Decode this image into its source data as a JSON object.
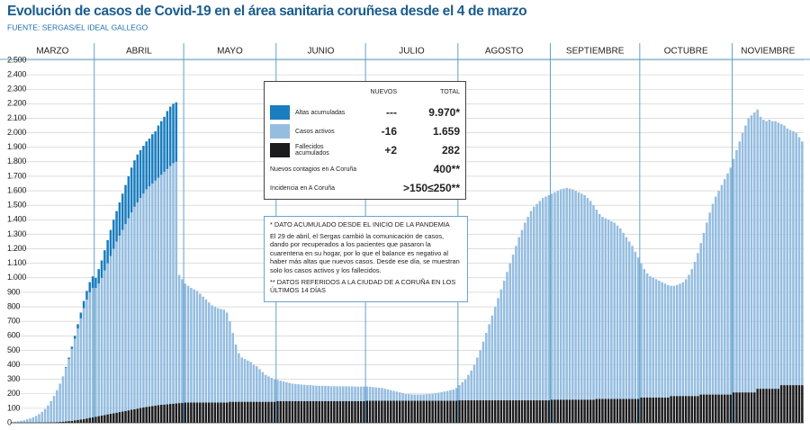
{
  "chart_data": {
    "type": "stacked_bar",
    "title": "Evolución de casos de Covid-19 en el área sanitaria coruñesa desde el 4 de marzo",
    "source": "FUENTE: SERGAS/EL IDEAL GALLEGO",
    "categories": [
      "MARZO",
      null,
      null,
      null,
      null,
      null,
      null,
      null,
      null,
      null,
      null,
      null,
      null,
      null,
      null,
      null,
      null,
      null,
      null,
      null,
      null,
      null,
      null,
      null,
      null,
      null,
      null,
      null,
      "ABRIL",
      null,
      null,
      null,
      null,
      null,
      null,
      null,
      null,
      null,
      null,
      null,
      null,
      null,
      null,
      null,
      null,
      null,
      null,
      null,
      null,
      null,
      null,
      null,
      null,
      null,
      null,
      null,
      null,
      null,
      "MAYO",
      null,
      null,
      null,
      null,
      null,
      null,
      null,
      null,
      null,
      null,
      null,
      null,
      null,
      null,
      null,
      null,
      null,
      null,
      null,
      null,
      null,
      null,
      null,
      null,
      null,
      null,
      null,
      null,
      null,
      null,
      "JUNIO",
      null,
      null,
      null,
      null,
      null,
      null,
      null,
      null,
      null,
      null,
      null,
      null,
      null,
      null,
      null,
      null,
      null,
      null,
      null,
      null,
      null,
      null,
      null,
      null,
      null,
      null,
      null,
      null,
      null,
      "JULIO",
      null,
      null,
      null,
      null,
      null,
      null,
      null,
      null,
      null,
      null,
      null,
      null,
      null,
      null,
      null,
      null,
      null,
      null,
      null,
      null,
      null,
      null,
      null,
      null,
      null,
      null,
      null,
      null,
      null,
      null,
      "AGOSTO",
      null,
      null,
      null,
      null,
      null,
      null,
      null,
      null,
      null,
      null,
      null,
      null,
      null,
      null,
      null,
      null,
      null,
      null,
      null,
      null,
      null,
      null,
      null,
      null,
      null,
      null,
      null,
      null,
      null,
      null,
      "SEPTIEMBRE",
      null,
      null,
      null,
      null,
      null,
      null,
      null,
      null,
      null,
      null,
      null,
      null,
      null,
      null,
      null,
      null,
      null,
      null,
      null,
      null,
      null,
      null,
      null,
      null,
      null,
      null,
      null,
      null,
      null,
      "OCTUBRE",
      null,
      null,
      null,
      null,
      null,
      null,
      null,
      null,
      null,
      null,
      null,
      null,
      null,
      null,
      null,
      null,
      null,
      null,
      null,
      null,
      null,
      null,
      null,
      null,
      null,
      null,
      null,
      null,
      null,
      null,
      "NOVIEMBRE",
      null,
      null,
      null,
      null,
      null,
      null,
      null,
      null,
      null,
      null,
      null,
      null,
      null,
      null,
      null,
      null,
      null,
      null,
      null,
      null,
      null,
      null,
      null
    ],
    "series": [
      {
        "name": "Altas acumuladas",
        "color": "#1a7dbf",
        "values": [
          0,
          0,
          0,
          0,
          0,
          0,
          0,
          0,
          0,
          0,
          0,
          0,
          0,
          0,
          0,
          0,
          0,
          0,
          5,
          10,
          15,
          20,
          30,
          40,
          50,
          60,
          70,
          80,
          70,
          100,
          120,
          140,
          160,
          180,
          200,
          210,
          230,
          250,
          270,
          290,
          310,
          320,
          330,
          330,
          330,
          330,
          330,
          340,
          340,
          360,
          370,
          380,
          400,
          410,
          410,
          410,
          null,
          null,
          null,
          null,
          null,
          null,
          null,
          null,
          null,
          null,
          null,
          null,
          null,
          null,
          null,
          null,
          null,
          null,
          null,
          null,
          null,
          null,
          null,
          null,
          null,
          null,
          null,
          null,
          null,
          null,
          null,
          null,
          null,
          null,
          null,
          null,
          null,
          null,
          null,
          null,
          null,
          null,
          null,
          null,
          null,
          null,
          null,
          null,
          null,
          null,
          null,
          null,
          null,
          null,
          null,
          null,
          null,
          null,
          null,
          null,
          null,
          null,
          null,
          null,
          null,
          null,
          null,
          null,
          null,
          null,
          null,
          null,
          null,
          null,
          null,
          null,
          null,
          null,
          null,
          null,
          null,
          null,
          null,
          null,
          null,
          null,
          null,
          null,
          null,
          null,
          null,
          null,
          null,
          null,
          null,
          null,
          null,
          null,
          null,
          null,
          null,
          null,
          null,
          null,
          null,
          null,
          null,
          null,
          null,
          null,
          null,
          null,
          null,
          null,
          null,
          null,
          null,
          null,
          null,
          null,
          null,
          null,
          null,
          null,
          null,
          null,
          null,
          null,
          null,
          null,
          null,
          null,
          null,
          null,
          null,
          null,
          null,
          null,
          null,
          null,
          null,
          null,
          null,
          null,
          null,
          null,
          null,
          null,
          null,
          null,
          null,
          null,
          null,
          null,
          null,
          null,
          null,
          null,
          null,
          null,
          null,
          null,
          null,
          null,
          null,
          null,
          null,
          null,
          null,
          null,
          null,
          null,
          null,
          null,
          null,
          null,
          null,
          null,
          null,
          null,
          null,
          null,
          null,
          null,
          null,
          null,
          null,
          null,
          null,
          null,
          null,
          null,
          null,
          null,
          null,
          null,
          null,
          null,
          null,
          null,
          null,
          null,
          null,
          null,
          null,
          null,
          null,
          null,
          null,
          null
        ]
      },
      {
        "name": "Casos activos",
        "color": "#95bde0",
        "values": [
          5,
          8,
          10,
          14,
          18,
          24,
          30,
          38,
          48,
          59,
          74,
          93,
          118,
          147,
          181,
          220,
          264,
          312,
          370,
          428,
          496,
          563,
          630,
          697,
          764,
          820,
          866,
          892,
          888,
          914,
          950,
          996,
          1042,
          1088,
          1134,
          1180,
          1216,
          1252,
          1288,
          1324,
          1360,
          1396,
          1422,
          1448,
          1474,
          1500,
          1517,
          1534,
          1551,
          1568,
          1586,
          1604,
          1622,
          1640,
          1658,
          1666,
          884,
          852,
          820,
          805,
          790,
          780,
          770,
          750,
          730,
          710,
          690,
          670,
          660,
          650,
          645,
          640,
          620,
          555,
          475,
          395,
          335,
          305,
          295,
          285,
          275,
          255,
          245,
          225,
          205,
          185,
          175,
          165,
          155,
          145,
          140,
          135,
          130,
          125,
          120,
          118,
          116,
          114,
          112,
          110,
          110,
          108,
          106,
          105,
          105,
          104,
          104,
          103,
          103,
          102,
          102,
          102,
          102,
          101,
          101,
          100,
          100,
          100,
          100,
          98,
          96,
          94,
          92,
          90,
          88,
          83,
          78,
          73,
          68,
          63,
          58,
          53,
          48,
          46,
          44,
          43,
          43,
          43,
          44,
          46,
          48,
          50,
          53,
          56,
          60,
          64,
          68,
          73,
          78,
          88,
          105,
          125,
          145,
          175,
          205,
          245,
          295,
          345,
          405,
          465,
          525,
          585,
          645,
          705,
          765,
          825,
          885,
          945,
          1005,
          1065,
          1125,
          1175,
          1225,
          1265,
          1305,
          1335,
          1355,
          1375,
          1395,
          1405,
          1415,
          1420,
          1430,
          1440,
          1450,
          1455,
          1460,
          1455,
          1450,
          1440,
          1430,
          1420,
          1410,
          1390,
          1370,
          1340,
          1305,
          1275,
          1255,
          1245,
          1235,
          1225,
          1215,
          1195,
          1175,
          1145,
          1115,
          1085,
          1055,
          1015,
          975,
          925,
          885,
          855,
          835,
          825,
          815,
          805,
          795,
          785,
          775,
          760,
          760,
          765,
          775,
          785,
          805,
          835,
          875,
          925,
          985,
          1045,
          1115,
          1185,
          1255,
          1315,
          1365,
          1405,
          1445,
          1485,
          1525,
          1565,
          1610,
          1670,
          1730,
          1790,
          1840,
          1890,
          1910,
          1930,
          1925,
          1875,
          1855,
          1845,
          1855,
          1845,
          1845,
          1835,
          1800,
          1790,
          1770,
          1760,
          1750,
          1740,
          1710,
          1680
        ]
      },
      {
        "name": "Fallecidos acumulados",
        "color": "#1c1c1e",
        "values": [
          0,
          0,
          0,
          0,
          0,
          0,
          0,
          0,
          0,
          1,
          1,
          2,
          2,
          3,
          4,
          5,
          6,
          8,
          10,
          12,
          14,
          17,
          20,
          23,
          26,
          30,
          34,
          38,
          42,
          46,
          50,
          54,
          58,
          62,
          66,
          70,
          74,
          78,
          82,
          86,
          90,
          94,
          98,
          102,
          106,
          110,
          113,
          116,
          119,
          122,
          124,
          126,
          128,
          130,
          132,
          134,
          136,
          138,
          140,
          140,
          140,
          140,
          140,
          140,
          140,
          140,
          140,
          140,
          140,
          140,
          140,
          140,
          140,
          145,
          145,
          145,
          145,
          145,
          145,
          145,
          145,
          145,
          145,
          145,
          145,
          145,
          145,
          145,
          145,
          150,
          150,
          150,
          150,
          150,
          150,
          150,
          150,
          150,
          150,
          150,
          150,
          150,
          150,
          150,
          150,
          150,
          150,
          150,
          150,
          150,
          150,
          150,
          150,
          150,
          150,
          150,
          150,
          150,
          150,
          152,
          152,
          152,
          152,
          152,
          152,
          152,
          152,
          152,
          152,
          152,
          152,
          152,
          152,
          152,
          152,
          152,
          152,
          152,
          152,
          152,
          152,
          152,
          152,
          152,
          152,
          152,
          152,
          152,
          152,
          152,
          155,
          155,
          155,
          155,
          155,
          155,
          155,
          155,
          155,
          155,
          155,
          155,
          155,
          155,
          155,
          155,
          155,
          155,
          155,
          155,
          155,
          155,
          155,
          155,
          155,
          155,
          155,
          155,
          155,
          155,
          155,
          160,
          160,
          160,
          160,
          160,
          160,
          160,
          160,
          160,
          160,
          160,
          160,
          160,
          160,
          160,
          165,
          165,
          165,
          165,
          165,
          165,
          165,
          165,
          165,
          165,
          165,
          165,
          165,
          165,
          165,
          175,
          175,
          175,
          175,
          175,
          175,
          175,
          175,
          175,
          175,
          185,
          185,
          185,
          185,
          185,
          185,
          185,
          185,
          185,
          185,
          195,
          195,
          195,
          195,
          195,
          195,
          195,
          195,
          195,
          195,
          195,
          210,
          210,
          210,
          210,
          210,
          210,
          210,
          210,
          235,
          235,
          235,
          235,
          235,
          235,
          235,
          235,
          260,
          260,
          260,
          260,
          260,
          260,
          260,
          260
        ]
      }
    ],
    "ylim": [
      0,
      2500
    ],
    "yticks": [
      0,
      100,
      200,
      300,
      400,
      500,
      600,
      700,
      800,
      900,
      {
        "value": 1000,
        "label": "1.000"
      },
      {
        "value": 1100,
        "label": "1.100"
      },
      {
        "value": 1200,
        "label": "1.200"
      },
      {
        "value": 1300,
        "label": "1.300"
      },
      {
        "value": 1400,
        "label": "1.400"
      },
      {
        "value": 1500,
        "label": "1.500"
      },
      {
        "value": 1600,
        "label": "1.600"
      },
      {
        "value": 1700,
        "label": "1.700"
      },
      {
        "value": 1800,
        "label": "1.800"
      },
      {
        "value": 1900,
        "label": "1.900"
      },
      {
        "value": 2000,
        "label": "2.000"
      },
      {
        "value": 2100,
        "label": "2.100"
      },
      {
        "value": 2200,
        "label": "2.200"
      },
      {
        "value": 2300,
        "label": "2.300"
      },
      {
        "value": 2400,
        "label": "2.400"
      },
      {
        "value": 2500,
        "label": "2.500"
      }
    ],
    "grid": true,
    "legend_table": {
      "columns": [
        "NUEVOS",
        "TOTAL"
      ],
      "rows": [
        {
          "new": "---",
          "total": "9.970*"
        },
        {
          "new": "-16",
          "total": "1.659"
        },
        {
          "new": "+2",
          "total": "282"
        }
      ],
      "extra_rows": [
        {
          "label": "Nuevos contagios en A Coruña",
          "total": "400**"
        },
        {
          "label": "Incidencia en A Coruña",
          "total": ">150≤250**"
        }
      ]
    },
    "notes": [
      "* DATO ACUMULADO DESDE EL INICIO DE LA PANDEMIA",
      "El 29 de abril, el Sergas cambió la comunicación de casos, dando por recuperados a los pacientes que pasaron la cuarentena en su hogar, por lo que el balance es negativo al haber más altas que nuevos casos. Desde ese día, se muestran solo los casos activos y los fallecidos.",
      "** DATOS REFERIDOS A LA CIUDAD DE A CORUÑA EN LOS ÚLTIMOS 14 DÍAS"
    ]
  }
}
